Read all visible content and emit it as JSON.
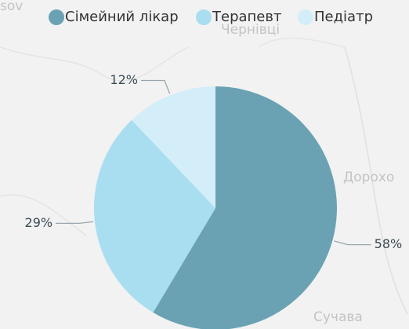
{
  "chart_data": {
    "type": "pie",
    "categories": [
      "Сімейний лікар",
      "Терапевт",
      "Педіатр"
    ],
    "values": [
      58,
      29,
      12
    ],
    "value_labels": [
      "58%",
      "29%",
      "12%"
    ],
    "colors": [
      "#6aa2b3",
      "#a8def0",
      "#d3eef8"
    ],
    "legend": "top"
  },
  "background_labels": [
    "sov",
    "Чернівці",
    "Дорохо",
    "Сучава"
  ]
}
